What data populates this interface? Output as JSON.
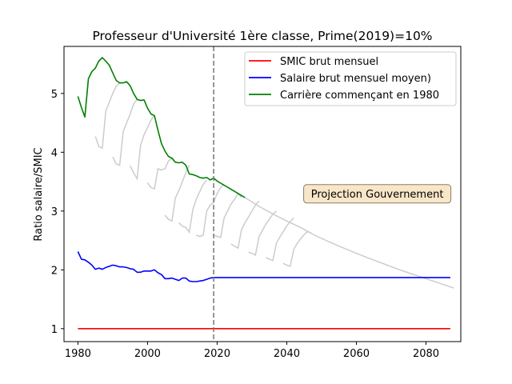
{
  "chart_data": {
    "type": "line",
    "title": "Professeur d'Université 1ère classe, Prime(2019)=10%",
    "xlabel": "",
    "ylabel": "Ratio salaire/SMIC",
    "xlim": [
      1976,
      2090
    ],
    "ylim": [
      0.78,
      5.8
    ],
    "xticks": [
      1980,
      2000,
      2020,
      2040,
      2060,
      2080
    ],
    "yticks": [
      1,
      2,
      3,
      4,
      5
    ],
    "grid": false,
    "legend_position": "top-right",
    "vline": {
      "x": 2019,
      "style": "dashed",
      "color": "#777777"
    },
    "annotation": {
      "text": "Projection Gouvernement",
      "x": 2066,
      "y": 3.3,
      "facecolor": "#f8e6c8",
      "edgecolor": "#8a7b66"
    },
    "series": [
      {
        "name": "SMIC brut mensuel",
        "color": "#ff0000",
        "x": [
          1980,
          2087
        ],
        "y": [
          1.0,
          1.0
        ]
      },
      {
        "name": "Salaire brut mensuel moyen)",
        "color": "#0000ff",
        "x": [
          1980,
          1981,
          1982,
          1983,
          1984,
          1985,
          1986,
          1987,
          1988,
          1989,
          1990,
          1991,
          1992,
          1993,
          1994,
          1995,
          1996,
          1997,
          1998,
          1999,
          2000,
          2001,
          2002,
          2003,
          2004,
          2005,
          2006,
          2007,
          2008,
          2009,
          2010,
          2011,
          2012,
          2013,
          2014,
          2015,
          2016,
          2017,
          2018,
          2019,
          2087
        ],
        "y": [
          2.31,
          2.18,
          2.17,
          2.13,
          2.08,
          2.01,
          2.03,
          2.01,
          2.04,
          2.06,
          2.08,
          2.07,
          2.05,
          2.05,
          2.04,
          2.02,
          2.01,
          1.96,
          1.96,
          1.98,
          1.98,
          1.98,
          2.0,
          1.95,
          1.92,
          1.85,
          1.85,
          1.86,
          1.84,
          1.82,
          1.86,
          1.86,
          1.81,
          1.8,
          1.8,
          1.81,
          1.82,
          1.84,
          1.86,
          1.87,
          1.87
        ]
      },
      {
        "name": "Carrière commençant en 1980",
        "color": "#008000",
        "x": [
          1980,
          1981,
          1982,
          1983,
          1984,
          1985,
          1986,
          1987,
          1988,
          1989,
          1990,
          1991,
          1992,
          1993,
          1994,
          1995,
          1996,
          1997,
          1998,
          1999,
          2000,
          2001,
          2002,
          2003,
          2004,
          2005,
          2006,
          2007,
          2008,
          2009,
          2010,
          2011,
          2012,
          2013,
          2014,
          2015,
          2016,
          2017,
          2018,
          2019,
          2020,
          2022,
          2024,
          2026,
          2028
        ],
        "y": [
          4.95,
          4.76,
          4.6,
          5.25,
          5.37,
          5.43,
          5.55,
          5.61,
          5.55,
          5.48,
          5.35,
          5.22,
          5.18,
          5.18,
          5.2,
          5.13,
          5.0,
          4.9,
          4.88,
          4.89,
          4.75,
          4.65,
          4.62,
          4.37,
          4.15,
          4.02,
          3.93,
          3.9,
          3.83,
          3.82,
          3.83,
          3.78,
          3.63,
          3.62,
          3.6,
          3.57,
          3.56,
          3.57,
          3.53,
          3.56,
          3.51,
          3.44,
          3.37,
          3.3,
          3.23
        ]
      }
    ],
    "background_series": {
      "color": "#cccccc",
      "note_hidden": false,
      "segments": [
        {
          "x": [
            1985,
            1986,
            1987,
            1988,
            1989,
            1990,
            1991,
            1992
          ],
          "y": [
            4.27,
            4.1,
            4.07,
            4.7,
            4.85,
            5.0,
            5.12,
            5.18
          ]
        },
        {
          "x": [
            1990,
            1991,
            1992,
            1993,
            1994,
            1995,
            1996,
            1997
          ],
          "y": [
            3.92,
            3.8,
            3.78,
            4.35,
            4.5,
            4.65,
            4.82,
            4.9
          ]
        },
        {
          "x": [
            1995,
            1996,
            1997,
            1998,
            1999,
            2000,
            2001,
            2002
          ],
          "y": [
            3.77,
            3.65,
            3.55,
            4.12,
            4.3,
            4.42,
            4.55,
            4.62
          ]
        },
        {
          "x": [
            2000,
            2001,
            2002,
            2003,
            2004,
            2005,
            2006,
            2007
          ],
          "y": [
            3.48,
            3.4,
            3.38,
            3.72,
            3.7,
            3.72,
            3.85,
            3.9
          ]
        },
        {
          "x": [
            2005,
            2006,
            2007,
            2008,
            2009,
            2010,
            2011,
            2012
          ],
          "y": [
            2.93,
            2.86,
            2.83,
            3.22,
            3.35,
            3.5,
            3.65,
            3.78
          ]
        },
        {
          "x": [
            2009,
            2010,
            2011,
            2012,
            2013,
            2014,
            2015,
            2016,
            2017
          ],
          "y": [
            2.8,
            2.74,
            2.72,
            2.64,
            3.02,
            3.2,
            3.33,
            3.45,
            3.53
          ]
        },
        {
          "x": [
            2014,
            2015,
            2016,
            2017,
            2018,
            2019,
            2020,
            2021,
            2022
          ],
          "y": [
            2.59,
            2.57,
            2.59,
            3.0,
            3.1,
            3.15,
            3.3,
            3.4,
            3.46
          ]
        },
        {
          "x": [
            2019,
            2020,
            2021,
            2022,
            2023,
            2024,
            2025,
            2026,
            2027
          ],
          "y": [
            2.59,
            2.57,
            2.55,
            2.88,
            3.0,
            3.12,
            3.2,
            3.3,
            3.23
          ]
        },
        {
          "x": [
            2024,
            2025,
            2026,
            2027,
            2028,
            2029,
            2030,
            2031,
            2032
          ],
          "y": [
            2.44,
            2.4,
            2.37,
            2.68,
            2.8,
            2.9,
            3.0,
            3.1,
            3.17
          ]
        },
        {
          "x": [
            2029,
            2030,
            2031,
            2032,
            2033,
            2034,
            2035,
            2036,
            2037
          ],
          "y": [
            2.3,
            2.28,
            2.25,
            2.56,
            2.67,
            2.78,
            2.86,
            2.95,
            3.0
          ]
        },
        {
          "x": [
            2034,
            2035,
            2036,
            2037,
            2038,
            2039,
            2040,
            2041,
            2042
          ],
          "y": [
            2.21,
            2.18,
            2.16,
            2.45,
            2.56,
            2.65,
            2.75,
            2.82,
            2.88
          ]
        },
        {
          "x": [
            2039,
            2040,
            2041,
            2042,
            2043,
            2044,
            2045,
            2046,
            2047
          ],
          "y": [
            2.11,
            2.08,
            2.06,
            2.35,
            2.45,
            2.53,
            2.6,
            2.65,
            2.63
          ]
        },
        {
          "x": [
            2028,
            2032,
            2036,
            2040,
            2044,
            2048,
            2052,
            2056,
            2060,
            2064,
            2068,
            2072,
            2076,
            2080,
            2084,
            2088
          ],
          "y": [
            3.23,
            3.08,
            2.95,
            2.83,
            2.72,
            2.59,
            2.48,
            2.38,
            2.28,
            2.19,
            2.1,
            2.01,
            1.93,
            1.85,
            1.77,
            1.69
          ]
        }
      ]
    }
  }
}
